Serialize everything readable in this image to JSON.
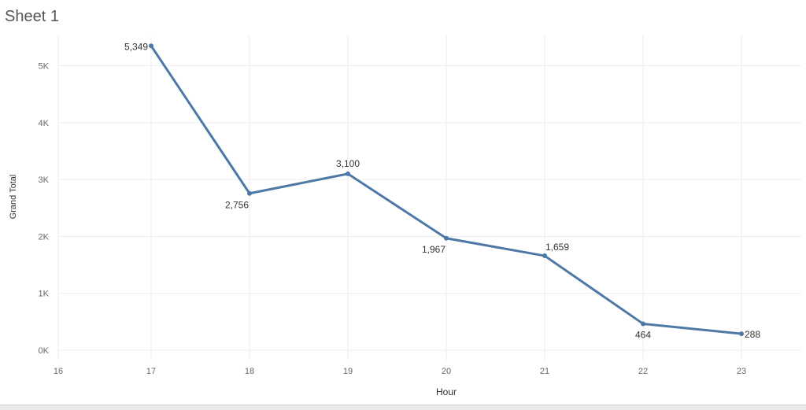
{
  "sheet": {
    "title": "Sheet 1"
  },
  "chart_data": {
    "type": "line",
    "title": "",
    "xlabel": "Hour",
    "ylabel": "Grand Total",
    "x": [
      17,
      18,
      19,
      20,
      21,
      22,
      23
    ],
    "series": [
      {
        "values": [
          5349,
          2756,
          3100,
          1967,
          1659,
          464,
          288
        ]
      }
    ],
    "data_labels": [
      "5,349",
      "2,756",
      "3,100",
      "1,967",
      "1,659",
      "464",
      "288"
    ],
    "x_ticks": [
      16,
      17,
      18,
      19,
      20,
      21,
      22,
      23
    ],
    "x_tick_labels": [
      "16",
      "17",
      "18",
      "19",
      "20",
      "21",
      "22",
      "23"
    ],
    "y_ticks": [
      0,
      1000,
      2000,
      3000,
      4000,
      5000
    ],
    "y_tick_labels": [
      "0K",
      "1K",
      "2K",
      "3K",
      "4K",
      "5K"
    ],
    "xlim": [
      16,
      23.6
    ],
    "ylim": [
      -100,
      5600
    ],
    "grid": true,
    "legend": "none",
    "colors": {
      "line": "#4e79a7",
      "grid": "#eeeeee",
      "tick_text": "#666666",
      "axis_title": "#333333"
    }
  }
}
